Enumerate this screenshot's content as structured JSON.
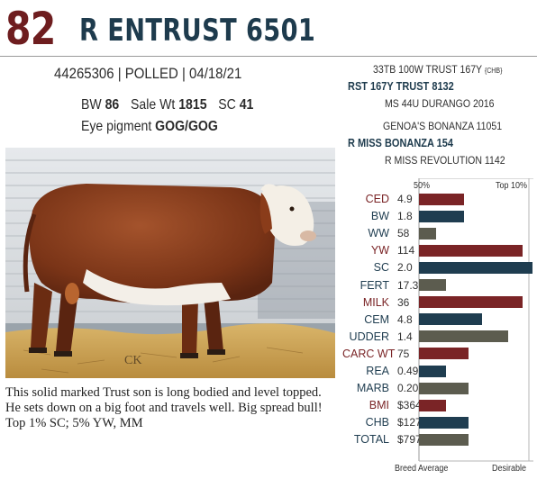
{
  "header": {
    "lot_number": "82",
    "bull_name": "R ENTRUST 6501"
  },
  "registration": {
    "number": "44265306",
    "polled": "POLLED",
    "birth_date": "04/18/21",
    "separator": "|"
  },
  "stats": {
    "bw_label": "BW",
    "bw_value": "86",
    "sale_wt_label": "Sale Wt",
    "sale_wt_value": "1815",
    "sc_label": "SC",
    "sc_value": "41",
    "eye_label": "Eye pigment",
    "eye_value": "GOG/GOG"
  },
  "pedigree": [
    {
      "text": "33TB 100W TRUST 167Y",
      "suffix": "{CHB}",
      "strong": false
    },
    {
      "text": "RST 167Y TRUST 8132",
      "suffix": "",
      "strong": true
    },
    {
      "text": "MS 44U DURANGO 2016",
      "suffix": "",
      "strong": false
    },
    {
      "text": "GENOA'S BONANZA 11051",
      "suffix": "",
      "strong": false
    },
    {
      "text": "R MISS BONANZA 154",
      "suffix": "",
      "strong": true
    },
    {
      "text": "R MISS REVOLUTION 1142",
      "suffix": "",
      "strong": false
    }
  ],
  "photo": {
    "watermark": "CK"
  },
  "description": "This solid marked Trust son is long bodied and level topped. He sets down on a big foot and travels well. Big spread bull! Top 1% SC; 5% YW, MM",
  "epd_chart": {
    "top_left_label": "50%",
    "top_right_label": "Top 10%",
    "bottom_left_label": "Breed Average",
    "bottom_right_label": "Desirable",
    "colors": {
      "growth": "#7a2426",
      "maternal": "#1f3d50",
      "carcass": "#5c5c4f",
      "label_dark": "#1f3d50",
      "label_red": "#7a2426"
    },
    "traits": [
      {
        "name": "CED",
        "value": "4.9",
        "level": 0.62,
        "color": "growth"
      },
      {
        "name": "BW",
        "value": "1.8",
        "level": 0.62,
        "color": "maternal"
      },
      {
        "name": "WW",
        "value": "58",
        "level": 0.24,
        "color": "carcass"
      },
      {
        "name": "YW",
        "value": "114",
        "level": 1.44,
        "color": "growth"
      },
      {
        "name": "SC",
        "value": "2.0",
        "level": 1.57,
        "color": "maternal"
      },
      {
        "name": "FERT",
        "value": "17.3",
        "level": 0.37,
        "color": "carcass"
      },
      {
        "name": "MILK",
        "value": "36",
        "level": 1.44,
        "color": "growth"
      },
      {
        "name": "CEM",
        "value": "4.8",
        "level": 0.88,
        "color": "maternal"
      },
      {
        "name": "UDDER",
        "value": "1.4",
        "level": 1.24,
        "color": "carcass"
      },
      {
        "name": "CARC WT",
        "value": "75",
        "level": 0.69,
        "color": "growth"
      },
      {
        "name": "REA",
        "value": "0.49",
        "level": 0.37,
        "color": "maternal"
      },
      {
        "name": "MARB",
        "value": "0.20",
        "level": 0.69,
        "color": "carcass"
      },
      {
        "name": "BMI",
        "value": "$364",
        "level": 0.37,
        "color": "growth"
      },
      {
        "name": "CHB",
        "value": "$127",
        "level": 0.69,
        "color": "maternal"
      },
      {
        "name": "TOTAL",
        "value": "$797",
        "level": 0.69,
        "color": "carcass"
      }
    ]
  }
}
